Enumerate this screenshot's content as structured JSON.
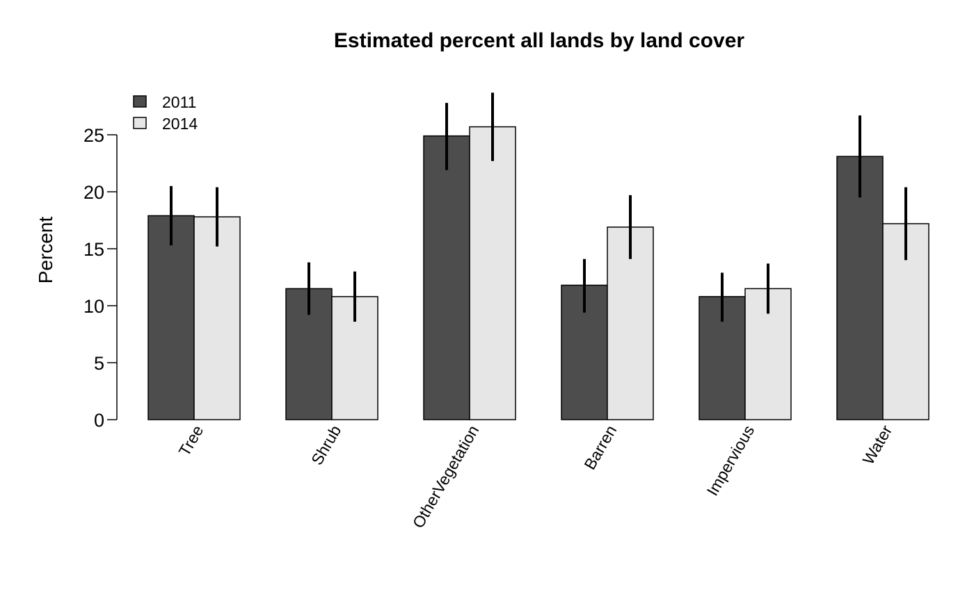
{
  "chart_data": {
    "type": "bar",
    "title": "Estimated percent all lands by land cover",
    "xlabel": "",
    "ylabel": "Percent",
    "ylim": [
      0,
      25
    ],
    "yticks": [
      0,
      5,
      10,
      15,
      20,
      25
    ],
    "grid": false,
    "legend_position": "top-left",
    "categories": [
      "Tree",
      "Shrub",
      "OtherVegetation",
      "Barren",
      "Impervious",
      "Water"
    ],
    "series": [
      {
        "name": "2011",
        "color": "#4d4d4d",
        "values": [
          17.9,
          11.5,
          24.9,
          11.8,
          10.8,
          23.1
        ],
        "error_low": [
          15.3,
          9.2,
          21.9,
          9.4,
          8.6,
          19.5
        ],
        "error_high": [
          20.5,
          13.8,
          27.8,
          14.1,
          12.9,
          26.7
        ]
      },
      {
        "name": "2014",
        "color": "#e6e6e6",
        "values": [
          17.8,
          10.8,
          25.7,
          16.9,
          11.5,
          17.2
        ],
        "error_low": [
          15.2,
          8.6,
          22.7,
          14.1,
          9.3,
          14.0
        ],
        "error_high": [
          20.4,
          13.0,
          28.7,
          19.7,
          13.7,
          20.4
        ]
      }
    ]
  }
}
